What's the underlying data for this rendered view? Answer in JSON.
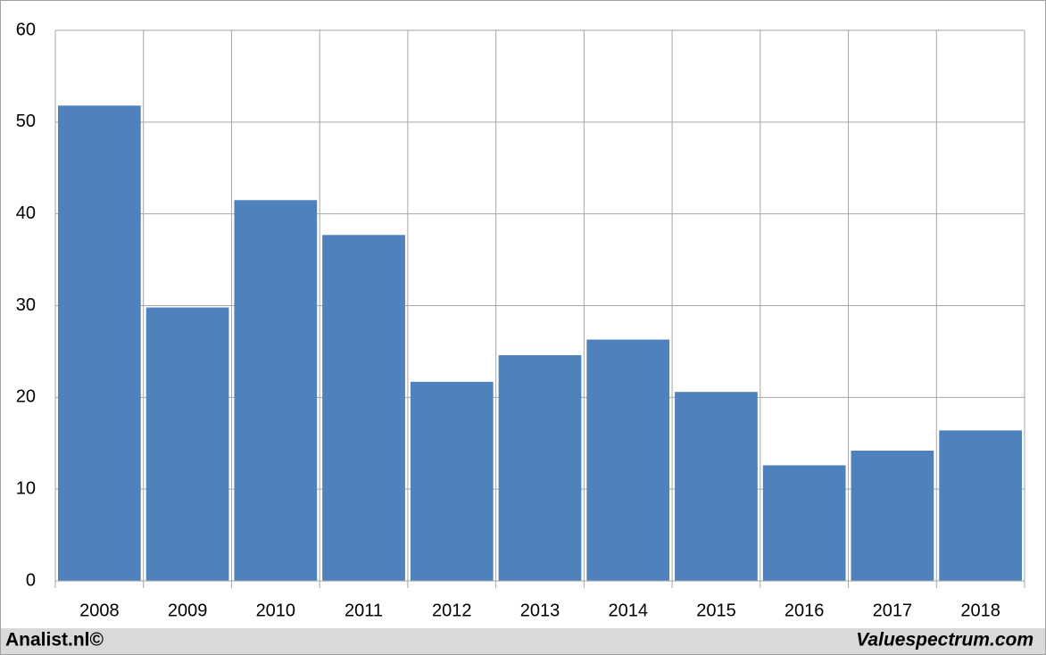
{
  "chart_data": {
    "type": "bar",
    "categories": [
      "2008",
      "2009",
      "2010",
      "2011",
      "2012",
      "2013",
      "2014",
      "2015",
      "2016",
      "2017",
      "2018"
    ],
    "values": [
      51.8,
      29.8,
      41.5,
      37.7,
      21.7,
      24.6,
      26.3,
      20.6,
      12.6,
      14.2,
      16.4
    ],
    "color": "#4f81bd",
    "ylim": [
      0,
      60
    ],
    "yticks": [
      0,
      10,
      20,
      30,
      40,
      50,
      60
    ],
    "grid": true,
    "footer_left": "Analist.nl©",
    "footer_right": "Valuespectrum.com"
  }
}
